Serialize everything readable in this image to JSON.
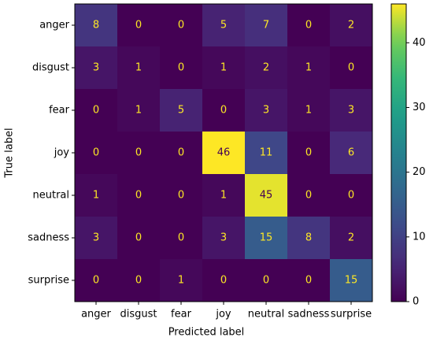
{
  "chart_data": {
    "type": "heatmap",
    "x_label": "Predicted label",
    "y_label": "True label",
    "x_categories": [
      "anger",
      "disgust",
      "fear",
      "joy",
      "neutral",
      "sadness",
      "surprise"
    ],
    "y_categories": [
      "anger",
      "disgust",
      "fear",
      "joy",
      "neutral",
      "sadness",
      "surprise"
    ],
    "z": [
      [
        8,
        0,
        0,
        5,
        7,
        0,
        2
      ],
      [
        3,
        1,
        0,
        1,
        2,
        1,
        0
      ],
      [
        0,
        1,
        5,
        0,
        3,
        1,
        3
      ],
      [
        0,
        0,
        0,
        46,
        11,
        0,
        6
      ],
      [
        1,
        0,
        0,
        1,
        45,
        0,
        0
      ],
      [
        3,
        0,
        0,
        3,
        15,
        8,
        2
      ],
      [
        0,
        0,
        1,
        0,
        0,
        0,
        15
      ]
    ],
    "colormap": "viridis",
    "zlim": [
      0,
      46
    ],
    "zticks": [
      0,
      10,
      20,
      30,
      40
    ]
  }
}
